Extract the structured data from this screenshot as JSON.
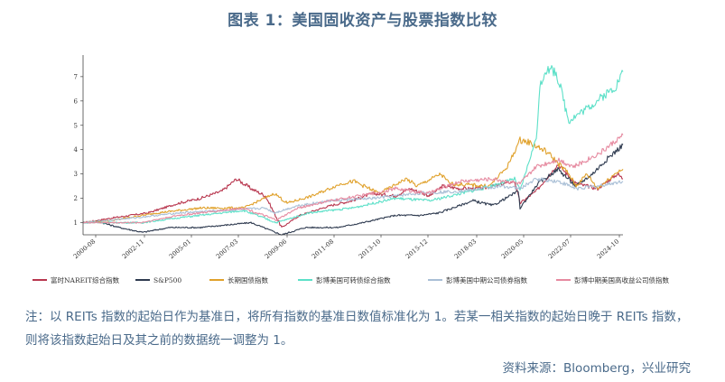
{
  "title": "图表 1：美国固收资产与股票指数比较",
  "note": "注：以 REITs 指数的起始日作为基准日，将所有指数的基准日数值标准化为 1。若某一相关指数的起始日晚于 REITs 指数，则将该指数起始日及其之前的数据统一调整为 1。",
  "source": "资料来源：Bloomberg，兴业研究",
  "chart_data": {
    "type": "line",
    "xlim": [
      "2000-01",
      "2024-12"
    ],
    "ylim": [
      0.5,
      7.7
    ],
    "yticks": [
      1,
      2,
      3,
      4,
      5,
      6,
      7
    ],
    "xticks": [
      "2000-08",
      "2002-11",
      "2005-01",
      "2007-03",
      "2009-06",
      "2011-08",
      "2013-10",
      "2015-12",
      "2018-03",
      "2020-05",
      "2022-07",
      "2024-10"
    ],
    "series": [
      {
        "name": "富时NAREIT综合指数",
        "color": "#b8364e",
        "points": [
          [
            "2000-01",
            1
          ],
          [
            "2001-06",
            1.2
          ],
          [
            "2003-01",
            1.4
          ],
          [
            "2004-06",
            1.8
          ],
          [
            "2005-06",
            2.0
          ],
          [
            "2006-06",
            2.3
          ],
          [
            "2007-02",
            2.8
          ],
          [
            "2007-10",
            2.4
          ],
          [
            "2008-06",
            2.1
          ],
          [
            "2009-03",
            0.8
          ],
          [
            "2010-01",
            1.3
          ],
          [
            "2011-06",
            1.7
          ],
          [
            "2012-06",
            1.9
          ],
          [
            "2013-05",
            2.2
          ],
          [
            "2014-06",
            2.1
          ],
          [
            "2015-02",
            2.4
          ],
          [
            "2016-01",
            2.1
          ],
          [
            "2016-08",
            2.5
          ],
          [
            "2017-06",
            2.4
          ],
          [
            "2018-06",
            2.4
          ],
          [
            "2019-12",
            2.7
          ],
          [
            "2020-03",
            1.8
          ],
          [
            "2020-12",
            2.3
          ],
          [
            "2021-12",
            3.4
          ],
          [
            "2022-10",
            2.6
          ],
          [
            "2023-10",
            2.4
          ],
          [
            "2024-09",
            3.0
          ],
          [
            "2024-12",
            2.8
          ]
        ]
      },
      {
        "name": "S&P500",
        "color": "#2e3a4f",
        "points": [
          [
            "2000-01",
            1
          ],
          [
            "2000-09",
            1.05
          ],
          [
            "2001-09",
            0.8
          ],
          [
            "2002-10",
            0.6
          ],
          [
            "2004-01",
            0.8
          ],
          [
            "2005-06",
            0.8
          ],
          [
            "2007-10",
            1.0
          ],
          [
            "2009-03",
            0.5
          ],
          [
            "2010-04",
            0.8
          ],
          [
            "2011-10",
            0.8
          ],
          [
            "2012-12",
            1.0
          ],
          [
            "2014-06",
            1.3
          ],
          [
            "2015-08",
            1.3
          ],
          [
            "2016-06",
            1.4
          ],
          [
            "2018-01",
            1.9
          ],
          [
            "2018-12",
            1.7
          ],
          [
            "2020-02",
            2.3
          ],
          [
            "2020-03",
            1.6
          ],
          [
            "2021-01",
            2.6
          ],
          [
            "2021-12",
            3.2
          ],
          [
            "2022-10",
            2.5
          ],
          [
            "2023-07",
            3.0
          ],
          [
            "2024-03",
            3.6
          ],
          [
            "2024-12",
            4.2
          ]
        ]
      },
      {
        "name": "长期国债指数",
        "color": "#e0a12b",
        "points": [
          [
            "2000-01",
            1
          ],
          [
            "2001-06",
            1.1
          ],
          [
            "2003-06",
            1.4
          ],
          [
            "2005-06",
            1.6
          ],
          [
            "2007-06",
            1.6
          ],
          [
            "2008-11",
            2.2
          ],
          [
            "2009-06",
            1.8
          ],
          [
            "2010-08",
            2.1
          ],
          [
            "2011-12",
            2.6
          ],
          [
            "2012-07",
            2.7
          ],
          [
            "2013-09",
            2.2
          ],
          [
            "2014-12",
            2.8
          ],
          [
            "2015-06",
            2.5
          ],
          [
            "2016-07",
            3.0
          ],
          [
            "2016-12",
            2.6
          ],
          [
            "2018-10",
            2.5
          ],
          [
            "2019-08",
            3.3
          ],
          [
            "2020-03",
            4.4
          ],
          [
            "2020-08",
            4.3
          ],
          [
            "2021-06",
            3.9
          ],
          [
            "2022-06",
            3.0
          ],
          [
            "2022-10",
            2.5
          ],
          [
            "2023-04",
            3.0
          ],
          [
            "2023-10",
            2.4
          ],
          [
            "2024-09",
            3.1
          ],
          [
            "2024-12",
            3.2
          ]
        ]
      },
      {
        "name": "彭博美国可转债综合指数",
        "color": "#5ce0c8",
        "points": [
          [
            "2000-01",
            1
          ],
          [
            "2002-10",
            1.0
          ],
          [
            "2004-06",
            1.2
          ],
          [
            "2007-06",
            1.5
          ],
          [
            "2008-12",
            1.0
          ],
          [
            "2010-06",
            1.4
          ],
          [
            "2012-06",
            1.6
          ],
          [
            "2014-06",
            2.0
          ],
          [
            "2016-01",
            1.9
          ],
          [
            "2018-06",
            2.4
          ],
          [
            "2019-12",
            2.8
          ],
          [
            "2020-03",
            2.3
          ],
          [
            "2020-12",
            4.5
          ],
          [
            "2021-02",
            6.5
          ],
          [
            "2021-05",
            7.3
          ],
          [
            "2021-11",
            7.2
          ],
          [
            "2022-06",
            5.2
          ],
          [
            "2022-10",
            5.4
          ],
          [
            "2023-06",
            5.8
          ],
          [
            "2024-01",
            6.2
          ],
          [
            "2024-08",
            6.6
          ],
          [
            "2024-12",
            7.2
          ]
        ]
      },
      {
        "name": "彭博美国中期公司债券指数",
        "color": "#a9bfd6",
        "points": [
          [
            "2000-01",
            1
          ],
          [
            "2002-06",
            1.2
          ],
          [
            "2004-06",
            1.4
          ],
          [
            "2006-06",
            1.5
          ],
          [
            "2008-06",
            1.6
          ],
          [
            "2008-11",
            1.4
          ],
          [
            "2009-12",
            1.7
          ],
          [
            "2011-06",
            1.9
          ],
          [
            "2013-06",
            2.0
          ],
          [
            "2015-06",
            2.2
          ],
          [
            "2017-06",
            2.3
          ],
          [
            "2019-06",
            2.5
          ],
          [
            "2020-03",
            2.4
          ],
          [
            "2020-12",
            2.8
          ],
          [
            "2021-12",
            2.7
          ],
          [
            "2022-10",
            2.4
          ],
          [
            "2023-10",
            2.5
          ],
          [
            "2024-12",
            2.7
          ]
        ]
      },
      {
        "name": "彭博中期美国高收益公司债指数",
        "color": "#e68aa0",
        "points": [
          [
            "2000-01",
            1
          ],
          [
            "2002-09",
            1.0
          ],
          [
            "2004-06",
            1.3
          ],
          [
            "2007-06",
            1.6
          ],
          [
            "2008-12",
            1.1
          ],
          [
            "2009-12",
            1.6
          ],
          [
            "2011-06",
            1.9
          ],
          [
            "2013-06",
            2.2
          ],
          [
            "2014-06",
            2.4
          ],
          [
            "2015-12",
            2.2
          ],
          [
            "2017-06",
            2.7
          ],
          [
            "2018-12",
            2.8
          ],
          [
            "2020-03",
            2.6
          ],
          [
            "2020-12",
            3.3
          ],
          [
            "2021-12",
            3.6
          ],
          [
            "2022-09",
            3.3
          ],
          [
            "2023-12",
            3.9
          ],
          [
            "2024-12",
            4.6
          ]
        ]
      }
    ],
    "legend_position": "bottom"
  }
}
